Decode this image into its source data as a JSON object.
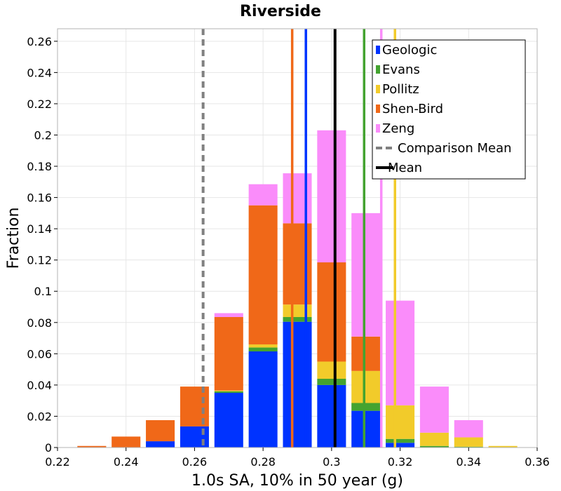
{
  "chart_data": {
    "type": "bar",
    "stacked": true,
    "title": "Riverside",
    "xlabel": "1.0s SA, 10% in 50 year (g)",
    "ylabel": "Fraction",
    "xlim": [
      0.22,
      0.36
    ],
    "ylim": [
      0,
      0.268
    ],
    "grid": true,
    "legend_position": "top-right",
    "x_ticks": [
      0.22,
      0.24,
      0.26,
      0.28,
      0.3,
      0.32,
      0.34,
      0.36
    ],
    "x_tick_labels": [
      "0.22",
      "0.24",
      "0.26",
      "0.28",
      "0.3",
      "0.32",
      "0.34",
      "0.36"
    ],
    "y_ticks": [
      0,
      0.02,
      0.04,
      0.06,
      0.08,
      0.1,
      0.12,
      0.14,
      0.16,
      0.18,
      0.2,
      0.22,
      0.24,
      0.26
    ],
    "y_tick_labels": [
      "0",
      "0.02",
      "0.04",
      "0.06",
      "0.08",
      "0.1",
      "0.12",
      "0.14",
      "0.16",
      "0.18",
      "0.2",
      "0.22",
      "0.24",
      "0.26"
    ],
    "bin_width": 0.01,
    "bins": [
      0.23,
      0.24,
      0.25,
      0.26,
      0.27,
      0.28,
      0.29,
      0.3,
      0.31,
      0.32,
      0.33,
      0.34,
      0.35
    ],
    "series": [
      {
        "name": "Geologic",
        "color": "#0033ff",
        "values": [
          0,
          0,
          0.004,
          0.0135,
          0.035,
          0.0615,
          0.0805,
          0.04,
          0.0235,
          0.003,
          0,
          0,
          0
        ]
      },
      {
        "name": "Evans",
        "color": "#44a330",
        "values": [
          0,
          0,
          0,
          0,
          0.001,
          0.0025,
          0.003,
          0.004,
          0.005,
          0.0025,
          0.001,
          0.0005,
          0
        ]
      },
      {
        "name": "Pollitz",
        "color": "#f2cb2a",
        "values": [
          0,
          0,
          0,
          0,
          0.0005,
          0.002,
          0.008,
          0.011,
          0.0205,
          0.0215,
          0.0085,
          0.006,
          0.001
        ]
      },
      {
        "name": "Shen-Bird",
        "color": "#f06818",
        "values": [
          0.001,
          0.007,
          0.0135,
          0.0255,
          0.047,
          0.089,
          0.052,
          0.0635,
          0.022,
          0,
          0,
          0,
          0
        ]
      },
      {
        "name": "Zeng",
        "color": "#fa8cfa",
        "values": [
          0,
          0,
          0,
          0,
          0.0025,
          0.0135,
          0.032,
          0.0845,
          0.079,
          0.067,
          0.0295,
          0.011,
          0
        ]
      }
    ],
    "vertical_lines": [
      {
        "series": "Shen-Bird",
        "x": 0.2885,
        "color": "#f06818",
        "style": "solid"
      },
      {
        "series": "Geologic",
        "x": 0.2925,
        "color": "#0033ff",
        "style": "solid"
      },
      {
        "series": "Evans",
        "x": 0.3095,
        "color": "#44a330",
        "style": "solid"
      },
      {
        "series": "Zeng",
        "x": 0.3145,
        "color": "#fa8cfa",
        "style": "solid"
      },
      {
        "series": "Pollitz",
        "x": 0.3185,
        "color": "#f2cb2a",
        "style": "solid"
      },
      {
        "series": "Comparison Mean",
        "x": 0.2625,
        "color": "#808080",
        "style": "dashed"
      },
      {
        "series": "Mean",
        "x": 0.301,
        "color": "#000000",
        "style": "solid"
      }
    ],
    "legend": [
      {
        "label": "Geologic",
        "color": "#0033ff",
        "kind": "box"
      },
      {
        "label": "Evans",
        "color": "#44a330",
        "kind": "box"
      },
      {
        "label": "Pollitz",
        "color": "#f2cb2a",
        "kind": "box"
      },
      {
        "label": "Shen-Bird",
        "color": "#f06818",
        "kind": "box"
      },
      {
        "label": "Zeng",
        "color": "#fa8cfa",
        "kind": "box"
      },
      {
        "label": "Comparison Mean",
        "color": "#808080",
        "kind": "dashed"
      },
      {
        "label": "Mean",
        "color": "#000000",
        "kind": "line"
      }
    ]
  }
}
